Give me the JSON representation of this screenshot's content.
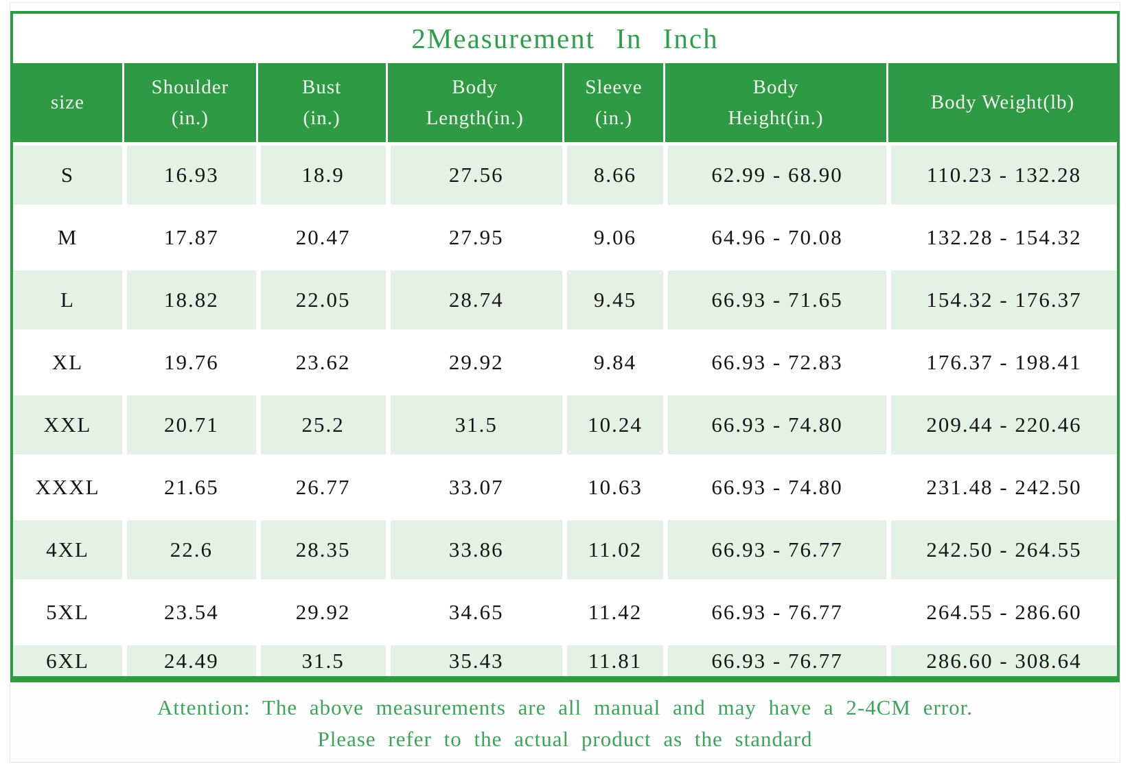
{
  "title": "2Measurement In Inch",
  "colors": {
    "header_green": "#2f9a44",
    "light_row_green": "#e3f2e4",
    "border_green": "#2e9a43",
    "bottom_bar_green": "#2a9d41",
    "title_text_green": "#2f9e4c",
    "attention_text_green": "#3ca45a",
    "cell_text": "#151515"
  },
  "table": {
    "columns": [
      {
        "label": "size"
      },
      {
        "label": "Shoulder\n(in.)"
      },
      {
        "label": "Bust\n(in.)"
      },
      {
        "label": "Body\nLength(in.)"
      },
      {
        "label": "Sleeve\n(in.)"
      },
      {
        "label": "Body\nHeight(in.)"
      },
      {
        "label": "Body Weight(lb)"
      }
    ],
    "rows": [
      [
        "S",
        "16.93",
        "18.9",
        "27.56",
        "8.66",
        "62.99 - 68.90",
        "110.23 - 132.28"
      ],
      [
        "M",
        "17.87",
        "20.47",
        "27.95",
        "9.06",
        "64.96 - 70.08",
        "132.28 - 154.32"
      ],
      [
        "L",
        "18.82",
        "22.05",
        "28.74",
        "9.45",
        "66.93 - 71.65",
        "154.32 - 176.37"
      ],
      [
        "XL",
        "19.76",
        "23.62",
        "29.92",
        "9.84",
        "66.93 - 72.83",
        "176.37 - 198.41"
      ],
      [
        "XXL",
        "20.71",
        "25.2",
        "31.5",
        "10.24",
        "66.93 - 74.80",
        "209.44 - 220.46"
      ],
      [
        "XXXL",
        "21.65",
        "26.77",
        "33.07",
        "10.63",
        "66.93 - 74.80",
        "231.48 - 242.50"
      ],
      [
        "4XL",
        "22.6",
        "28.35",
        "33.86",
        "11.02",
        "66.93 - 76.77",
        "242.50 - 264.55"
      ],
      [
        "5XL",
        "23.54",
        "29.92",
        "34.65",
        "11.42",
        "66.93 - 76.77",
        "264.55 - 286.60"
      ],
      [
        "6XL",
        "24.49",
        "31.5",
        "35.43",
        "11.81",
        "66.93 - 76.77",
        "286.60 - 308.64"
      ]
    ]
  },
  "attention": {
    "line1": "Attention: The above measurements are all manual and may have a 2-4CM error.",
    "line2": "Please refer to the actual product as the standard"
  }
}
